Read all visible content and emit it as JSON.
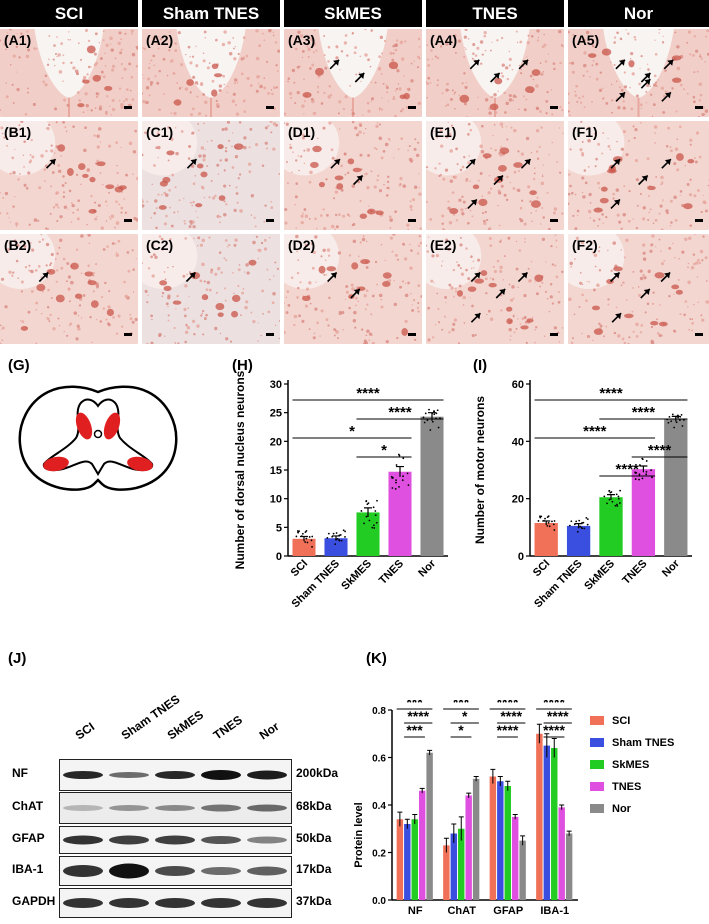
{
  "histology": {
    "columns": [
      "SCI",
      "Sham TNES",
      "SkMES",
      "TNES",
      "Nor"
    ],
    "rows": [
      {
        "labels": [
          "(A1)",
          "(A2)",
          "(A3)",
          "(A4)",
          "(A5)"
        ],
        "arrow_counts": [
          0,
          0,
          2,
          3,
          6
        ]
      },
      {
        "labels": [
          "(B1)",
          "(C1)",
          "(D1)",
          "(E1)",
          "(F1)"
        ],
        "arrow_counts": [
          1,
          1,
          2,
          4,
          4
        ]
      },
      {
        "labels": [
          "(B2)",
          "(C2)",
          "(D2)",
          "(E2)",
          "(F2)"
        ],
        "arrow_counts": [
          1,
          1,
          2,
          4,
          4
        ]
      }
    ]
  },
  "panel_g": {
    "label": "(G)"
  },
  "chart_data": [
    {
      "id": "H",
      "panel_label": "(H)",
      "type": "bar",
      "categories": [
        "SCI",
        "Sham TNES",
        "SkMES",
        "TNES",
        "Nor"
      ],
      "values": [
        3.0,
        3.1,
        7.6,
        14.7,
        24.3
      ],
      "errors": [
        0.4,
        0.4,
        0.8,
        0.9,
        0.7
      ],
      "colors": [
        "#f07058",
        "#3a4ee0",
        "#22cc22",
        "#e050e0",
        "#8a8a8a"
      ],
      "ylabel": "Number of dorsal nucleus neurons",
      "ylim": [
        0,
        30
      ],
      "yticks": [
        0,
        5,
        10,
        15,
        20,
        25,
        30
      ],
      "significance": [
        {
          "from": 0,
          "to": 4,
          "label": "****"
        },
        {
          "from": 2,
          "to": 4,
          "label": "****"
        },
        {
          "from": 0,
          "to": 3,
          "label": "*"
        },
        {
          "from": 2,
          "to": 3,
          "label": "*"
        }
      ]
    },
    {
      "id": "I",
      "panel_label": "(I)",
      "type": "bar",
      "categories": [
        "SCI",
        "Sham TNES",
        "SkMES",
        "TNES",
        "Nor"
      ],
      "values": [
        11.5,
        10.5,
        20.5,
        30.3,
        47.8
      ],
      "errors": [
        0.7,
        0.8,
        0.9,
        1.1,
        0.9
      ],
      "colors": [
        "#f07058",
        "#3a4ee0",
        "#22cc22",
        "#e050e0",
        "#8a8a8a"
      ],
      "ylabel": "Number of motor neurons",
      "ylim": [
        0,
        60
      ],
      "yticks": [
        0,
        20,
        40,
        60
      ],
      "significance": [
        {
          "from": 0,
          "to": 4,
          "label": "****"
        },
        {
          "from": 2,
          "to": 4,
          "label": "****"
        },
        {
          "from": 0,
          "to": 3,
          "label": "****"
        },
        {
          "from": 3,
          "to": 4,
          "label": "****"
        },
        {
          "from": 2,
          "to": 3,
          "label": "****"
        }
      ]
    },
    {
      "id": "K",
      "panel_label": "(K)",
      "type": "bar",
      "categories": [
        "NF",
        "ChAT",
        "GFAP",
        "IBA-1"
      ],
      "series": [
        {
          "name": "SCI",
          "color": "#f07058",
          "values": [
            0.34,
            0.23,
            0.52,
            0.7
          ],
          "errors": [
            0.03,
            0.03,
            0.03,
            0.04
          ]
        },
        {
          "name": "Sham TNES",
          "color": "#3a4ee0",
          "values": [
            0.32,
            0.28,
            0.5,
            0.65
          ],
          "errors": [
            0.02,
            0.04,
            0.02,
            0.05
          ]
        },
        {
          "name": "SkMES",
          "color": "#22cc22",
          "values": [
            0.34,
            0.3,
            0.48,
            0.64
          ],
          "errors": [
            0.02,
            0.05,
            0.02,
            0.04
          ]
        },
        {
          "name": "TNES",
          "color": "#e050e0",
          "values": [
            0.46,
            0.44,
            0.35,
            0.39
          ],
          "errors": [
            0.01,
            0.01,
            0.01,
            0.01
          ]
        },
        {
          "name": "Nor",
          "color": "#8a8a8a",
          "values": [
            0.62,
            0.51,
            0.25,
            0.28
          ],
          "errors": [
            0.01,
            0.01,
            0.02,
            0.01
          ]
        }
      ],
      "ylabel": "Protein level",
      "ylim": [
        0,
        0.8
      ],
      "yticks": [
        0.0,
        0.2,
        0.4,
        0.6,
        0.8
      ],
      "legend_position": "right",
      "significance": [
        [
          "***",
          "****",
          "***"
        ],
        [
          "***",
          "*",
          "*"
        ],
        [
          "****",
          "****",
          "****"
        ],
        [
          "****",
          "****",
          "****"
        ]
      ]
    }
  ],
  "panel_j": {
    "label": "(J)",
    "lanes": [
      "SCI",
      "Sham TNES",
      "SkMES",
      "TNES",
      "Nor"
    ],
    "rows": [
      {
        "name": "NF",
        "kda": "200kDa"
      },
      {
        "name": "ChAT",
        "kda": "68kDa"
      },
      {
        "name": "GFAP",
        "kda": "50kDa"
      },
      {
        "name": "IBA-1",
        "kda": "17kDa"
      },
      {
        "name": "GAPDH",
        "kda": "37kDa"
      }
    ]
  }
}
